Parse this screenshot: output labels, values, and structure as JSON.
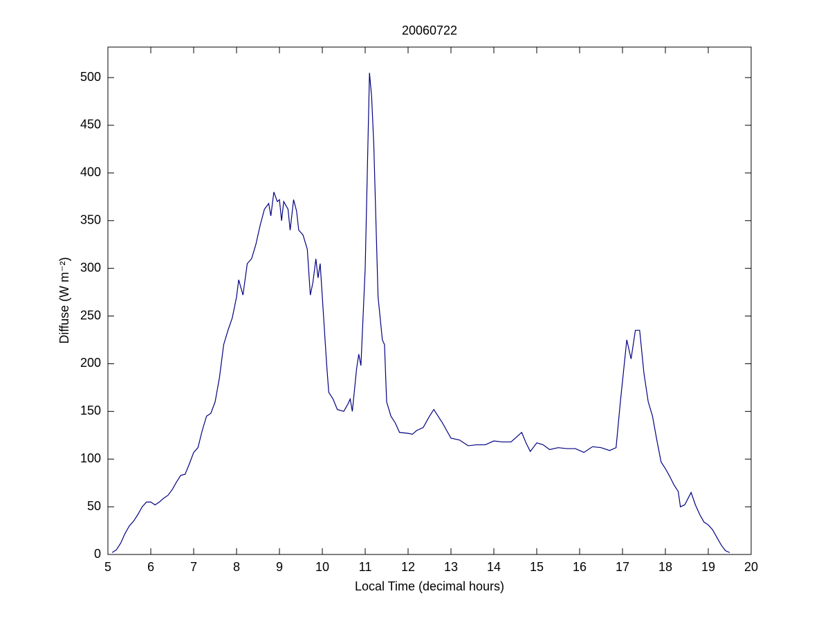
{
  "chart_data": {
    "type": "line",
    "title": "20060722",
    "x_label": "Local Time (decimal hours)",
    "y_label": "Diffuse (W m⁻²)",
    "xlim": [
      5,
      20
    ],
    "ylim": [
      0,
      532
    ],
    "xticks": [
      5,
      6,
      7,
      8,
      9,
      10,
      11,
      12,
      13,
      14,
      15,
      16,
      17,
      18,
      19,
      20
    ],
    "yticks": [
      0,
      50,
      100,
      150,
      200,
      250,
      300,
      350,
      400,
      450,
      500
    ],
    "grid": false,
    "series": [
      {
        "name": "Diffuse",
        "color": "#000080",
        "x": [
          5.1,
          5.2,
          5.3,
          5.4,
          5.5,
          5.6,
          5.7,
          5.8,
          5.9,
          6.0,
          6.1,
          6.2,
          6.3,
          6.4,
          6.5,
          6.6,
          6.7,
          6.8,
          6.9,
          7.0,
          7.1,
          7.2,
          7.3,
          7.4,
          7.5,
          7.6,
          7.7,
          7.8,
          7.9,
          8.0,
          8.05,
          8.15,
          8.25,
          8.35,
          8.45,
          8.55,
          8.65,
          8.75,
          8.8,
          8.87,
          8.95,
          9.0,
          9.05,
          9.1,
          9.2,
          9.25,
          9.33,
          9.4,
          9.45,
          9.55,
          9.65,
          9.72,
          9.78,
          9.85,
          9.9,
          9.95,
          10.0,
          10.1,
          10.15,
          10.25,
          10.35,
          10.5,
          10.6,
          10.65,
          10.7,
          10.8,
          10.85,
          10.9,
          11.0,
          11.1,
          11.15,
          11.2,
          11.3,
          11.4,
          11.45,
          11.5,
          11.6,
          11.7,
          11.8,
          12.0,
          12.1,
          12.2,
          12.35,
          12.5,
          12.6,
          12.7,
          12.8,
          12.9,
          13.0,
          13.2,
          13.4,
          13.6,
          13.8,
          14.0,
          14.2,
          14.4,
          14.5,
          14.65,
          14.75,
          14.85,
          15.0,
          15.15,
          15.3,
          15.5,
          15.7,
          15.9,
          16.1,
          16.3,
          16.5,
          16.7,
          16.85,
          16.95,
          17.1,
          17.2,
          17.3,
          17.4,
          17.5,
          17.6,
          17.7,
          17.8,
          17.9,
          18.0,
          18.1,
          18.2,
          18.3,
          18.35,
          18.45,
          18.6,
          18.7,
          18.8,
          18.9,
          19.0,
          19.1,
          19.2,
          19.3,
          19.4,
          19.5
        ],
        "values": [
          2,
          5,
          12,
          22,
          30,
          35,
          42,
          50,
          55,
          55,
          52,
          55,
          59,
          62,
          68,
          76,
          83,
          84,
          95,
          107,
          112,
          130,
          145,
          148,
          160,
          185,
          220,
          235,
          248,
          270,
          288,
          272,
          305,
          310,
          325,
          345,
          362,
          368,
          355,
          380,
          370,
          372,
          350,
          370,
          362,
          340,
          372,
          360,
          340,
          335,
          320,
          272,
          285,
          310,
          290,
          305,
          270,
          200,
          170,
          163,
          152,
          150,
          158,
          163,
          150,
          195,
          210,
          198,
          300,
          505,
          480,
          430,
          270,
          225,
          220,
          160,
          145,
          138,
          128,
          127,
          126,
          130,
          133,
          145,
          152,
          145,
          138,
          130,
          122,
          120,
          114,
          115,
          115,
          119,
          118,
          118,
          122,
          128,
          117,
          108,
          117,
          115,
          110,
          112,
          111,
          111,
          107,
          113,
          112,
          109,
          112,
          160,
          225,
          205,
          235,
          235,
          190,
          160,
          145,
          120,
          97,
          90,
          82,
          73,
          66,
          50,
          52,
          65,
          52,
          42,
          34,
          31,
          26,
          18,
          10,
          4,
          2
        ]
      }
    ]
  }
}
